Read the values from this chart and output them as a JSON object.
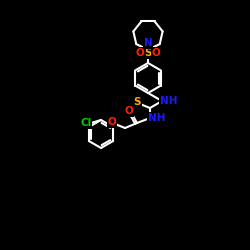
{
  "bg_color": "#000000",
  "bond_color": "#ffffff",
  "bond_width": 1.5,
  "atom_colors": {
    "N": "#1a1aff",
    "S": "#ffaa00",
    "O": "#ff2200",
    "NH": "#1a1aff",
    "Cl": "#00cc00"
  },
  "font_size": 7.5,
  "figsize": [
    2.5,
    2.5
  ],
  "dpi": 100
}
